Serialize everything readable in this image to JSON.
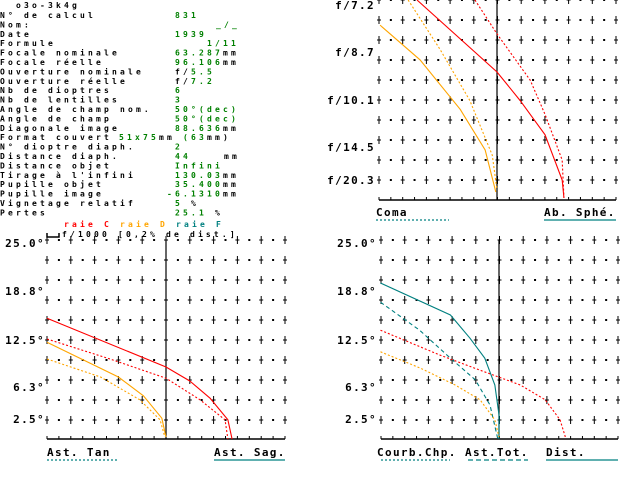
{
  "title": "o3o-3k4g",
  "colors": {
    "label": "#000000",
    "value": "#008000",
    "raie_C": "#ff0000",
    "raie_D": "#ffa500",
    "raie_F": "#008080"
  },
  "fields": [
    {
      "label": "N° de calcul",
      "value": "831",
      "unit": ""
    },
    {
      "label": "Nom:",
      "value": "_/_",
      "unit": ""
    },
    {
      "label": "Date",
      "value": "1939",
      "unit": ""
    },
    {
      "label": "Formule",
      "value": "1/11",
      "unit": ""
    },
    {
      "label": "Focale nominale",
      "value": "63.287",
      "unit": "mm"
    },
    {
      "label": "Focale réelle",
      "value": "96.106",
      "unit": "mm"
    },
    {
      "label": "Ouverture nominale",
      "prefix": "f/",
      "value": "5.5",
      "unit": ""
    },
    {
      "label": "Ouverture réelle",
      "prefix": "f/",
      "value": "7.2",
      "unit": ""
    },
    {
      "label": "Nb de dioptres",
      "value": "6",
      "unit": ""
    },
    {
      "label": "Nb de lentilles",
      "value": "3",
      "unit": ""
    },
    {
      "label": "Angle de champ nom.",
      "value": "50°(dec)",
      "unit": ""
    },
    {
      "label": "Angle de champ",
      "value": "50°(dec)",
      "unit": ""
    },
    {
      "label": "Diagonale image",
      "value": "88.636",
      "unit": "mm"
    },
    {
      "label": "Format couvert",
      "value": "51x75",
      "unit": "mm",
      "value2": " (63",
      "unit2": "mm)"
    },
    {
      "label": "N° dioptre diaph.",
      "value": "2",
      "unit": ""
    },
    {
      "label": "Distance diaph.",
      "value": "44",
      "unit": "mm"
    },
    {
      "label": "Distance objet",
      "value": "Infini",
      "unit": ""
    },
    {
      "label": "Tirage à l'infini",
      "value": "130.03",
      "unit": "mm"
    },
    {
      "label": "Pupille objet",
      "value": "35.400",
      "unit": "mm"
    },
    {
      "label": "Pupille image",
      "value": "-6.1310",
      "unit": "mm"
    },
    {
      "label": "Vignetage relatif",
      "value": "5",
      "unit": " %"
    },
    {
      "label": "Pertes",
      "value": "25.1",
      "unit": " %"
    }
  ],
  "legend": {
    "raie_C": "raie C",
    "raie_D": "raie D",
    "raie_F": "raie F",
    "scale": "f/1000 [0,2% de dist.]"
  },
  "chart_data": [
    {
      "type": "line",
      "name": "aperture",
      "y_ticks": [
        "f/7.2",
        "f/8.7",
        "f/10.1",
        "f/14.5",
        "f/20.3"
      ],
      "y_unit": "f-number",
      "x_unit": "divisions of f/1000",
      "labels": {
        "left": "Coma",
        "right": "Ab. Sphé."
      },
      "series": [
        {
          "color": "#ff0000",
          "style": "solid",
          "points": [
            [
              -6.75,
              7.2
            ],
            [
              0,
              9.0
            ],
            [
              1.94,
              10.2
            ],
            [
              4.05,
              12.6
            ],
            [
              5.5,
              22.8
            ],
            [
              5.65,
              72
            ]
          ]
        },
        {
          "color": "#ff0000",
          "style": "dotted",
          "points": [
            [
              -1.86,
              7.2
            ],
            [
              0,
              7.9
            ],
            [
              2.8,
              9.3
            ],
            [
              4.05,
              11.0
            ],
            [
              5.5,
              16.1
            ],
            [
              5.65,
              72
            ]
          ]
        },
        {
          "color": "#ffa500",
          "style": "solid",
          "points": [
            [
              -9.87,
              7.7
            ],
            [
              -6.5,
              8.6
            ],
            [
              -3.1,
              10.7
            ],
            [
              -1.0,
              14.4
            ],
            [
              -0.1,
              36
            ]
          ]
        },
        {
          "color": "#ffa500",
          "style": "dotted",
          "points": [
            [
              -7.5,
              7.2
            ],
            [
              -4.8,
              8.3
            ],
            [
              -2.3,
              10.2
            ],
            [
              -0.4,
              15.2
            ],
            [
              0,
              32
            ]
          ]
        }
      ]
    },
    {
      "type": "line",
      "name": "astigmatism",
      "y_ticks": [
        "25.0°",
        "18.8°",
        "12.5°",
        "6.3°",
        "2.5°"
      ],
      "y_unit": "degrees",
      "x_unit": "divisions of f/1000",
      "labels": {
        "left": "Ast. Tan",
        "right": "Ast. Sag."
      },
      "series": [
        {
          "color": "#ff0000",
          "style": "solid",
          "points": [
            [
              -10,
              15.1
            ],
            [
              0,
              9.0
            ],
            [
              2.0,
              7.25
            ],
            [
              3.7,
              5.1
            ],
            [
              5.2,
              2.4
            ],
            [
              5.55,
              0
            ]
          ]
        },
        {
          "color": "#ff0000",
          "style": "dotted",
          "points": [
            [
              -10,
              12.5
            ],
            [
              -4.7,
              10
            ],
            [
              0,
              7.6
            ],
            [
              2.86,
              4.9
            ],
            [
              4.96,
              2.4
            ],
            [
              5.2,
              0
            ]
          ]
        },
        {
          "color": "#ffa500",
          "style": "solid",
          "points": [
            [
              -10,
              12.1
            ],
            [
              -4.0,
              7.75
            ],
            [
              -1.9,
              5.4
            ],
            [
              -0.35,
              2.6
            ],
            [
              0,
              0.25
            ]
          ]
        },
        {
          "color": "#ffa500",
          "style": "dotted",
          "points": [
            [
              -10,
              10
            ],
            [
              -5.5,
              7.75
            ],
            [
              -2.2,
              4.9
            ],
            [
              -0.5,
              2.4
            ],
            [
              -0.1,
              0.25
            ]
          ]
        }
      ]
    },
    {
      "type": "line",
      "name": "field",
      "y_ticks": [
        "25.0°",
        "18.8°",
        "12.5°",
        "6.3°",
        "2.5°"
      ],
      "y_unit": "degrees",
      "x_unit": "divisions of f/1000",
      "labels": {
        "left": "Courb.Chp.",
        "mid": "Ast.Tot.",
        "right": "Dist."
      },
      "series": [
        {
          "color": "#008080",
          "style": "solid",
          "points": [
            [
              -10,
              19.5
            ],
            [
              -4.1,
              15.5
            ],
            [
              -2.45,
              12.6
            ],
            [
              -1.2,
              10.1
            ],
            [
              -0.35,
              6.75
            ],
            [
              0,
              3
            ],
            [
              0,
              0
            ]
          ]
        },
        {
          "color": "#008080",
          "style": "dashed",
          "points": [
            [
              -10,
              17.1
            ],
            [
              -6.7,
              13.6
            ],
            [
              -4.1,
              10.1
            ],
            [
              -2.0,
              7.4
            ],
            [
              -0.76,
              4.25
            ],
            [
              -0.1,
              0
            ]
          ]
        },
        {
          "color": "#ff0000",
          "style": "dotted",
          "points": [
            [
              -10,
              13.6
            ],
            [
              -5,
              10.5
            ],
            [
              -1.6,
              8.6
            ],
            [
              1.8,
              6.75
            ],
            [
              3.9,
              4.9
            ],
            [
              5.15,
              2.4
            ],
            [
              5.6,
              0.25
            ]
          ]
        },
        {
          "color": "#ffa500",
          "style": "dotted",
          "points": [
            [
              -10,
              10.9
            ],
            [
              -6.7,
              8.9
            ],
            [
              -3.7,
              6.75
            ],
            [
              -1.6,
              4.9
            ],
            [
              -0.35,
              2.4
            ],
            [
              0,
              0.25
            ]
          ]
        }
      ]
    }
  ]
}
